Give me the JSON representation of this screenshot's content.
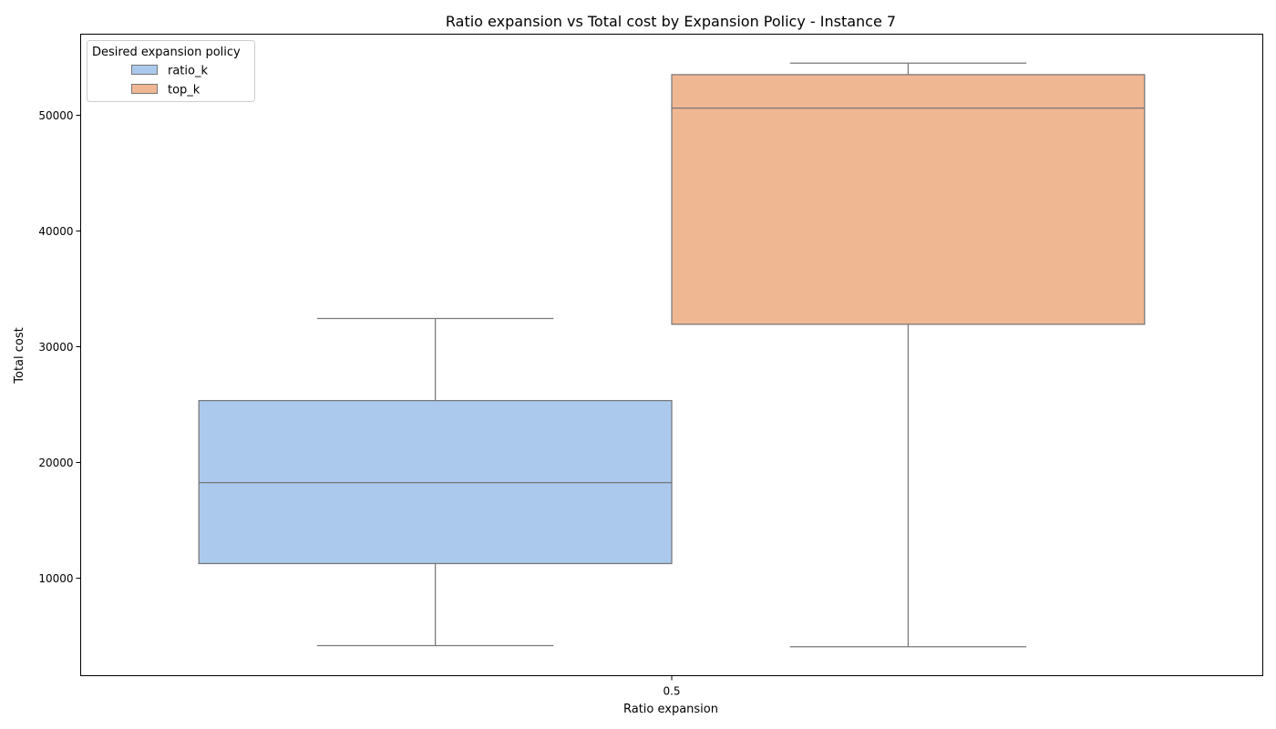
{
  "chart_data": {
    "type": "box",
    "title": "Ratio expansion vs Total cost by Expansion Policy - Instance 7",
    "xlabel": "Ratio expansion",
    "ylabel": "Total cost",
    "categories": [
      "0.5"
    ],
    "ylim": [
      1500,
      57000
    ],
    "yticks": [
      10000,
      20000,
      30000,
      40000,
      50000
    ],
    "grid": false,
    "legend": {
      "title": "Desired expansion policy",
      "placement": "upper-left"
    },
    "series": [
      {
        "name": "ratio_k",
        "color": "#abc9ec",
        "whisker_low": 4100,
        "q1": 11200,
        "median": 18200,
        "q3": 25300,
        "whisker_high": 32400
      },
      {
        "name": "top_k",
        "color": "#f0b793",
        "whisker_low": 4000,
        "q1": 31900,
        "median": 50600,
        "q3": 53500,
        "whisker_high": 54500
      }
    ]
  }
}
